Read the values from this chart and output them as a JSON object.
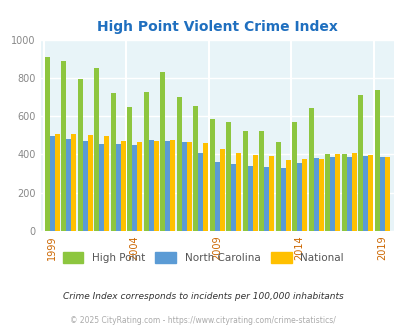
{
  "title": "High Point Violent Crime Index",
  "years": [
    1999,
    2000,
    2001,
    2002,
    2003,
    2004,
    2005,
    2006,
    2007,
    2008,
    2009,
    2010,
    2011,
    2012,
    2013,
    2014,
    2015,
    2016,
    2017,
    2018,
    2019
  ],
  "high_point": [
    910,
    890,
    795,
    850,
    720,
    650,
    725,
    830,
    700,
    655,
    585,
    570,
    520,
    525,
    465,
    570,
    645,
    400,
    400,
    710,
    735
  ],
  "north_carolina": [
    495,
    480,
    470,
    455,
    455,
    450,
    475,
    470,
    465,
    410,
    360,
    350,
    340,
    335,
    330,
    355,
    380,
    385,
    385,
    390,
    385
  ],
  "national": [
    505,
    505,
    500,
    495,
    470,
    465,
    470,
    475,
    465,
    460,
    430,
    405,
    395,
    390,
    370,
    375,
    375,
    400,
    405,
    395,
    385
  ],
  "bar_colors": {
    "high_point": "#8dc63f",
    "north_carolina": "#5b9bd5",
    "national": "#ffc000"
  },
  "ylim": [
    0,
    1000
  ],
  "yticks": [
    0,
    200,
    400,
    600,
    800,
    1000
  ],
  "xtick_labels": [
    "1999",
    "2004",
    "2009",
    "2014",
    "2019"
  ],
  "xtick_positions": [
    1999,
    2004,
    2009,
    2014,
    2019
  ],
  "background_color": "#e8f4f8",
  "title_color": "#1f6fbf",
  "legend_labels": [
    "High Point",
    "North Carolina",
    "National"
  ],
  "legend_text_color": "#555555",
  "ytick_color": "#888888",
  "xtick_color": "#cc6600",
  "footnote1": "Crime Index corresponds to incidents per 100,000 inhabitants",
  "footnote1_color": "#333333",
  "footnote2": "© 2025 CityRating.com - https://www.cityrating.com/crime-statistics/",
  "footnote2_color": "#aaaaaa",
  "grid_color": "#ffffff"
}
